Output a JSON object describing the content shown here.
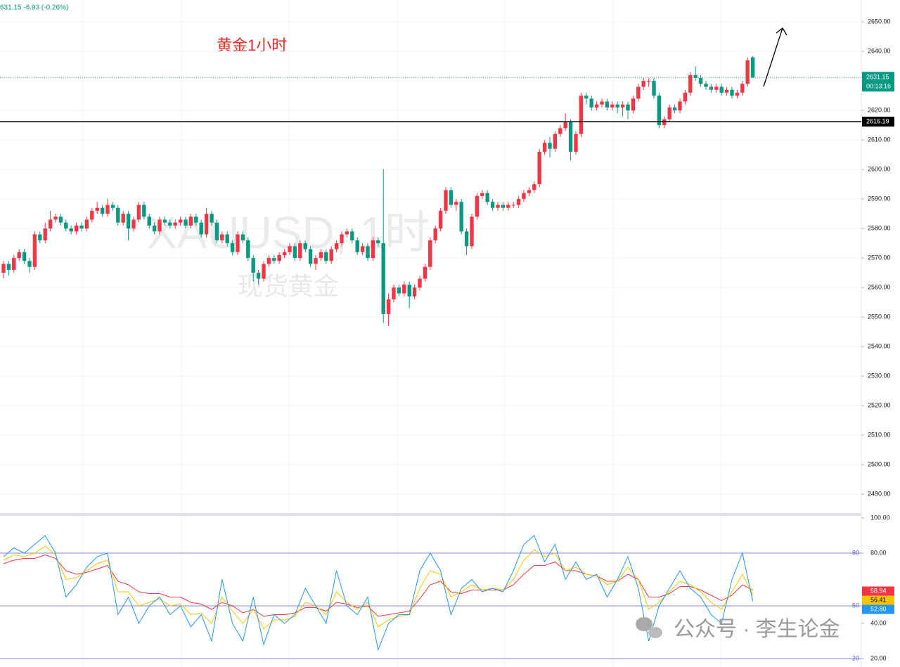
{
  "header": {
    "quote": "631.15 -6.93 (-0.26%)",
    "annotation": "黄金1小时",
    "watermark_symbol": "XAUUSD, 1时",
    "watermark_name": "现货黄金",
    "footer_mark": "公众号 · 李生论金"
  },
  "chart_data": [
    {
      "type": "candlestick",
      "up_color": "#f23645",
      "down_color": "#089981",
      "ylim": [
        2483.6,
        2657.4
      ],
      "yticks": [
        {
          "value": 2490,
          "label": "2490.00"
        },
        {
          "value": 2500,
          "label": "2500.00"
        },
        {
          "value": 2510,
          "label": "2510.00"
        },
        {
          "value": 2520,
          "label": "2520.00"
        },
        {
          "value": 2530,
          "label": "2530.00"
        },
        {
          "value": 2540,
          "label": "2540.00"
        },
        {
          "value": 2550,
          "label": "2550.00"
        },
        {
          "value": 2560,
          "label": "2560.00"
        },
        {
          "value": 2570,
          "label": "2570.00"
        },
        {
          "value": 2580,
          "label": "2580.00"
        },
        {
          "value": 2590,
          "label": "2590.00"
        },
        {
          "value": 2600,
          "label": "2600.00"
        },
        {
          "value": 2610,
          "label": "2610.00"
        },
        {
          "value": 2620,
          "label": "2620.00"
        },
        {
          "value": 2630,
          "label": "2630.00"
        },
        {
          "value": 2640,
          "label": "2640.00"
        },
        {
          "value": 2650,
          "label": "2650.00"
        }
      ],
      "grid": true,
      "last_price": 2631.15,
      "countdown": "00:13:16",
      "level_line": 2616.19,
      "ohlc": [
        [
          2565,
          2569,
          2563,
          2568
        ],
        [
          2568,
          2569,
          2564,
          2566
        ],
        [
          2566,
          2571,
          2565,
          2570
        ],
        [
          2570,
          2573,
          2569,
          2572
        ],
        [
          2572,
          2573,
          2568,
          2569
        ],
        [
          2569,
          2570,
          2565,
          2567
        ],
        [
          2567,
          2579,
          2566,
          2578
        ],
        [
          2578,
          2579,
          2575,
          2576
        ],
        [
          2576,
          2582,
          2575,
          2580
        ],
        [
          2580,
          2586,
          2579,
          2583
        ],
        [
          2583,
          2585,
          2582,
          2584
        ],
        [
          2584,
          2585,
          2581,
          2582
        ],
        [
          2582,
          2583,
          2579,
          2580
        ],
        [
          2580,
          2581,
          2578,
          2579
        ],
        [
          2579,
          2582,
          2578,
          2581
        ],
        [
          2581,
          2582,
          2579,
          2580
        ],
        [
          2580,
          2584,
          2579,
          2583
        ],
        [
          2583,
          2587,
          2582,
          2586
        ],
        [
          2586,
          2589,
          2585,
          2587
        ],
        [
          2587,
          2588,
          2584,
          2585
        ],
        [
          2585,
          2590,
          2584,
          2588
        ],
        [
          2588,
          2589,
          2586,
          2587
        ],
        [
          2587,
          2588,
          2581,
          2582
        ],
        [
          2582,
          2586,
          2581,
          2585
        ],
        [
          2585,
          2586,
          2576,
          2580
        ],
        [
          2580,
          2584,
          2579,
          2583
        ],
        [
          2583,
          2589,
          2582,
          2588
        ],
        [
          2588,
          2589,
          2583,
          2584
        ],
        [
          2584,
          2585,
          2580,
          2581
        ],
        [
          2581,
          2582,
          2578,
          2579
        ],
        [
          2579,
          2584,
          2578,
          2583
        ],
        [
          2583,
          2584,
          2581,
          2582
        ],
        [
          2582,
          2583,
          2580,
          2581
        ],
        [
          2581,
          2583,
          2580,
          2582
        ],
        [
          2582,
          2584,
          2581,
          2583
        ],
        [
          2583,
          2584,
          2580,
          2581
        ],
        [
          2581,
          2585,
          2580,
          2584
        ],
        [
          2584,
          2585,
          2581,
          2582
        ],
        [
          2582,
          2583,
          2577,
          2578
        ],
        [
          2578,
          2587,
          2577,
          2585
        ],
        [
          2585,
          2586,
          2581,
          2582
        ],
        [
          2582,
          2583,
          2575,
          2576
        ],
        [
          2576,
          2579,
          2575,
          2578
        ],
        [
          2578,
          2579,
          2574,
          2575
        ],
        [
          2575,
          2576,
          2571,
          2572
        ],
        [
          2572,
          2579,
          2571,
          2578
        ],
        [
          2578,
          2579,
          2575,
          2576
        ],
        [
          2576,
          2577,
          2569,
          2570
        ],
        [
          2570,
          2571,
          2562,
          2565
        ],
        [
          2565,
          2566,
          2561,
          2563
        ],
        [
          2563,
          2569,
          2562,
          2568
        ],
        [
          2568,
          2571,
          2567,
          2570
        ],
        [
          2570,
          2571,
          2568,
          2569
        ],
        [
          2569,
          2572,
          2568,
          2571
        ],
        [
          2571,
          2573,
          2570,
          2572
        ],
        [
          2572,
          2575,
          2571,
          2574
        ],
        [
          2574,
          2575,
          2569,
          2570
        ],
        [
          2570,
          2576,
          2569,
          2575
        ],
        [
          2575,
          2576,
          2572,
          2573
        ],
        [
          2573,
          2574,
          2567,
          2568
        ],
        [
          2568,
          2571,
          2566,
          2570
        ],
        [
          2570,
          2573,
          2569,
          2572
        ],
        [
          2572,
          2573,
          2568,
          2569
        ],
        [
          2569,
          2574,
          2568,
          2573
        ],
        [
          2573,
          2576,
          2572,
          2575
        ],
        [
          2575,
          2579,
          2574,
          2578
        ],
        [
          2578,
          2580,
          2577,
          2579
        ],
        [
          2579,
          2580,
          2575,
          2576
        ],
        [
          2576,
          2577,
          2571,
          2572
        ],
        [
          2572,
          2575,
          2571,
          2574
        ],
        [
          2574,
          2575,
          2569,
          2570
        ],
        [
          2570,
          2577,
          2569,
          2576
        ],
        [
          2576,
          2577,
          2574,
          2575
        ],
        [
          2575,
          2600,
          2548,
          2551
        ],
        [
          2551,
          2558,
          2547,
          2556
        ],
        [
          2556,
          2561,
          2555,
          2560
        ],
        [
          2560,
          2561,
          2557,
          2558
        ],
        [
          2558,
          2562,
          2557,
          2561
        ],
        [
          2561,
          2562,
          2553,
          2557
        ],
        [
          2557,
          2561,
          2556,
          2560
        ],
        [
          2560,
          2564,
          2559,
          2563
        ],
        [
          2563,
          2568,
          2562,
          2567
        ],
        [
          2567,
          2577,
          2566,
          2576
        ],
        [
          2576,
          2581,
          2575,
          2580
        ],
        [
          2580,
          2587,
          2579,
          2586
        ],
        [
          2586,
          2594,
          2585,
          2593
        ],
        [
          2593,
          2594,
          2587,
          2588
        ],
        [
          2588,
          2590,
          2586,
          2589
        ],
        [
          2589,
          2590,
          2578,
          2579
        ],
        [
          2579,
          2580,
          2571,
          2574
        ],
        [
          2574,
          2585,
          2573,
          2584
        ],
        [
          2584,
          2592,
          2583,
          2591
        ],
        [
          2591,
          2593,
          2590,
          2592
        ],
        [
          2592,
          2593,
          2588,
          2589
        ],
        [
          2589,
          2590,
          2586,
          2587
        ],
        [
          2587,
          2589,
          2586,
          2588
        ],
        [
          2588,
          2589,
          2586,
          2587
        ],
        [
          2587,
          2589,
          2586,
          2588
        ],
        [
          2588,
          2589,
          2587,
          2588
        ],
        [
          2588,
          2591,
          2587,
          2590
        ],
        [
          2590,
          2593,
          2589,
          2592
        ],
        [
          2592,
          2594,
          2591,
          2593
        ],
        [
          2593,
          2596,
          2592,
          2595
        ],
        [
          2595,
          2607,
          2594,
          2606
        ],
        [
          2606,
          2610,
          2605,
          2609
        ],
        [
          2609,
          2611,
          2604,
          2607
        ],
        [
          2607,
          2613,
          2606,
          2612
        ],
        [
          2612,
          2615,
          2611,
          2614
        ],
        [
          2614,
          2619,
          2613,
          2616
        ],
        [
          2616,
          2617,
          2603,
          2606
        ],
        [
          2606,
          2613,
          2605,
          2612
        ],
        [
          2612,
          2626,
          2611,
          2625
        ],
        [
          2625,
          2626,
          2622,
          2624
        ],
        [
          2624,
          2625,
          2620,
          2621
        ],
        [
          2621,
          2623,
          2620,
          2622
        ],
        [
          2622,
          2624,
          2621,
          2623
        ],
        [
          2623,
          2624,
          2620,
          2621
        ],
        [
          2621,
          2623,
          2620,
          2622
        ],
        [
          2622,
          2623,
          2619,
          2621
        ],
        [
          2621,
          2623,
          2618,
          2622
        ],
        [
          2622,
          2623,
          2617,
          2620
        ],
        [
          2620,
          2625,
          2619,
          2624
        ],
        [
          2624,
          2629,
          2623,
          2628
        ],
        [
          2628,
          2631,
          2627,
          2630
        ],
        [
          2630,
          2631,
          2628,
          2630
        ],
        [
          2630,
          2631,
          2624,
          2625
        ],
        [
          2625,
          2626,
          2614,
          2615
        ],
        [
          2615,
          2618,
          2614,
          2617
        ],
        [
          2617,
          2622,
          2616,
          2621
        ],
        [
          2621,
          2622,
          2619,
          2620
        ],
        [
          2620,
          2624,
          2619,
          2623
        ],
        [
          2623,
          2627,
          2622,
          2626
        ],
        [
          2626,
          2633,
          2625,
          2632
        ],
        [
          2632,
          2635,
          2630,
          2631
        ],
        [
          2631,
          2632,
          2628,
          2629
        ],
        [
          2629,
          2630,
          2627,
          2628
        ],
        [
          2628,
          2629,
          2626,
          2627
        ],
        [
          2627,
          2629,
          2626,
          2628
        ],
        [
          2628,
          2629,
          2625,
          2626
        ],
        [
          2626,
          2628,
          2625,
          2627
        ],
        [
          2627,
          2628,
          2624,
          2625
        ],
        [
          2625,
          2627,
          2624,
          2626
        ],
        [
          2626,
          2630,
          2625,
          2629
        ],
        [
          2629,
          2638,
          2628,
          2637
        ],
        [
          2638,
          2638.5,
          2631,
          2631.15
        ]
      ]
    },
    {
      "type": "line",
      "ylim": [
        16.8,
        100.8
      ],
      "yticks": [
        {
          "value": 100,
          "label": "100.00"
        },
        {
          "value": 80,
          "label": "80.00"
        },
        {
          "value": 40,
          "label": "40.00"
        },
        {
          "value": 20,
          "label": "20.00"
        }
      ],
      "levels": [
        80,
        50,
        20
      ],
      "level_color": "#5b5bd6",
      "series": [
        {
          "color": "#f23645",
          "last_label": "58.94",
          "values": [
            74,
            76,
            77,
            77,
            79,
            77,
            70,
            68,
            69,
            71,
            73,
            64,
            62,
            58,
            57,
            57,
            55,
            55,
            52,
            51,
            48,
            52,
            50,
            46,
            48,
            44,
            45,
            45,
            46,
            49,
            49,
            47,
            52,
            51,
            49,
            50,
            44,
            45,
            46,
            47,
            54,
            62,
            64,
            58,
            57,
            59,
            59,
            59,
            59,
            62,
            68,
            73,
            73,
            75,
            70,
            70,
            68,
            67,
            64,
            64,
            68,
            65,
            55,
            55,
            57,
            61,
            61,
            59,
            56,
            53,
            56,
            62,
            58.94
          ]
        },
        {
          "color": "#f5c400",
          "last_label": "56.41",
          "values": [
            76,
            79,
            78,
            80,
            84,
            79,
            65,
            66,
            70,
            74,
            76,
            58,
            58,
            50,
            52,
            54,
            50,
            51,
            45,
            46,
            40,
            55,
            47,
            40,
            48,
            37,
            42,
            42,
            44,
            52,
            50,
            45,
            58,
            52,
            48,
            52,
            38,
            42,
            44,
            45,
            60,
            70,
            68,
            55,
            58,
            62,
            59,
            60,
            59,
            65,
            76,
            82,
            78,
            80,
            70,
            72,
            68,
            67,
            62,
            64,
            72,
            65,
            48,
            52,
            58,
            64,
            62,
            58,
            52,
            48,
            58,
            68,
            56.41
          ]
        },
        {
          "color": "#2196f3",
          "last_label": "52.80",
          "values": [
            78,
            83,
            80,
            85,
            90,
            80,
            55,
            62,
            72,
            78,
            80,
            45,
            55,
            40,
            50,
            55,
            45,
            50,
            38,
            45,
            30,
            65,
            40,
            30,
            55,
            28,
            45,
            40,
            45,
            60,
            50,
            40,
            70,
            50,
            45,
            55,
            25,
            40,
            45,
            45,
            70,
            80,
            70,
            45,
            60,
            65,
            58,
            60,
            58,
            70,
            85,
            90,
            75,
            85,
            65,
            75,
            65,
            68,
            55,
            65,
            78,
            60,
            30,
            50,
            60,
            70,
            60,
            55,
            45,
            40,
            65,
            80,
            52.8
          ]
        }
      ]
    }
  ]
}
